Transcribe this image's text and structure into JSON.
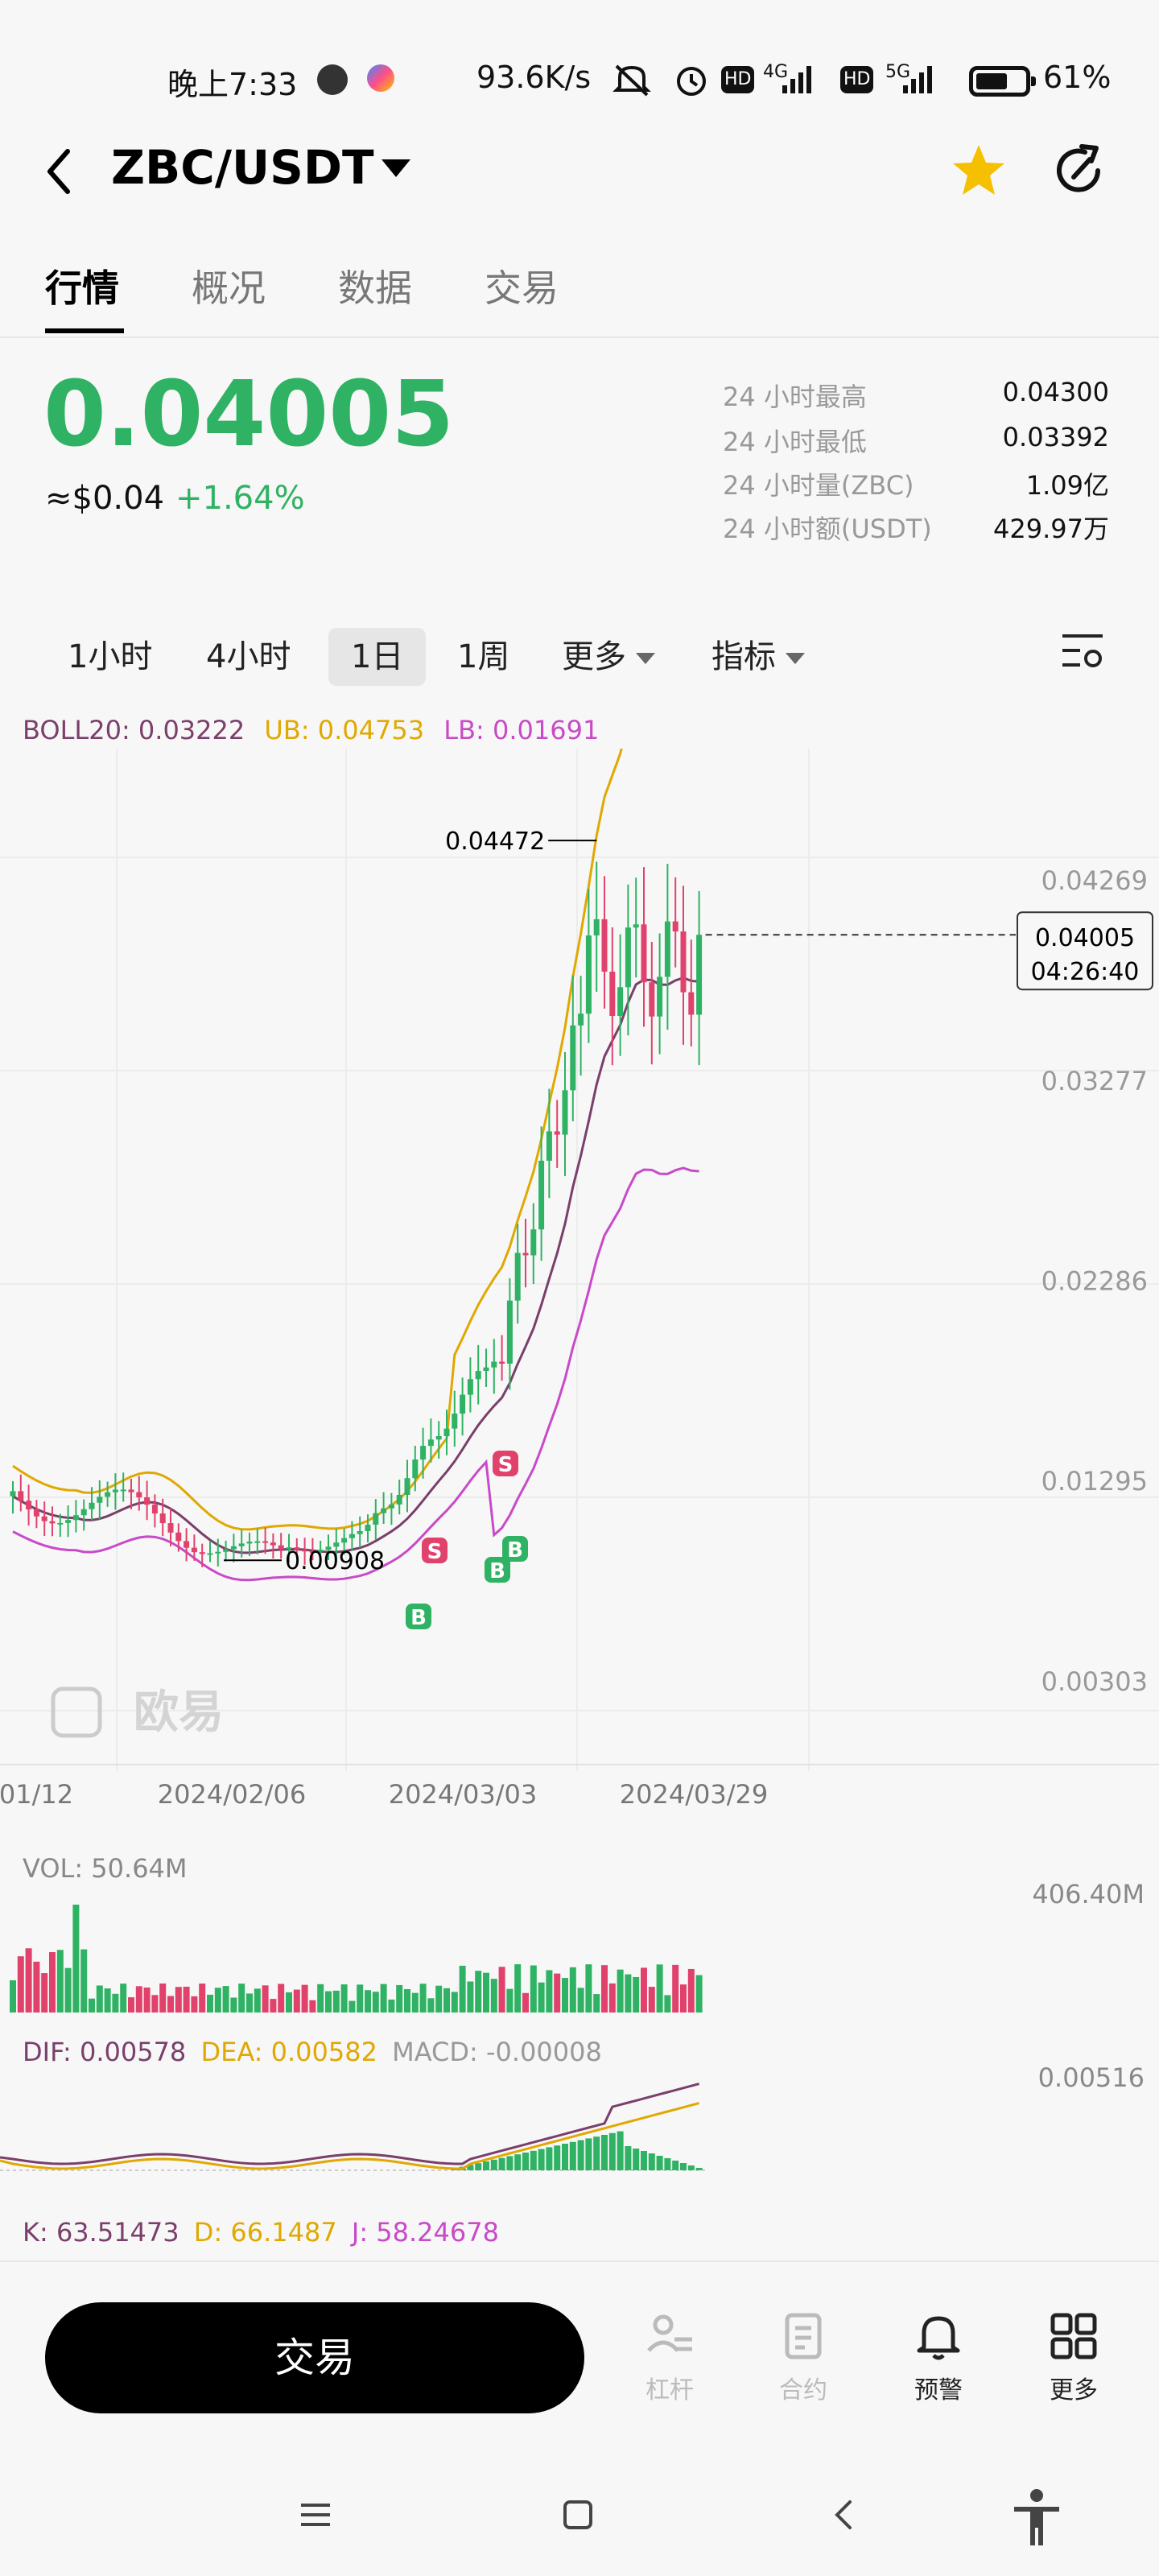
{
  "status_bar": {
    "time": "晚上7:33",
    "net_rate": "93.6K/s",
    "hd1": "HD",
    "net1": "4G",
    "hd2": "HD",
    "net2": "5G",
    "battery": "61%"
  },
  "header": {
    "pair": "ZBC/USDT",
    "icons": [
      "back-arrow-icon",
      "caret-down-icon",
      "star-icon",
      "share-icon"
    ],
    "favorite_color": "#f5c000"
  },
  "tabs": [
    {
      "label": "行情",
      "active": true
    },
    {
      "label": "概况",
      "active": false
    },
    {
      "label": "数据",
      "active": false
    },
    {
      "label": "交易",
      "active": false
    }
  ],
  "price": {
    "last": "0.04005",
    "fiat": "≈$0.04",
    "change": "+1.64%",
    "up_color": "#2fb263",
    "down_color": "#e0426c"
  },
  "stats": [
    {
      "label": "24 小时最高",
      "value": "0.04300"
    },
    {
      "label": "24 小时最低",
      "value": "0.03392"
    },
    {
      "label": "24 小时量(ZBC)",
      "value": "1.09亿"
    },
    {
      "label": "24 小时额(USDT)",
      "value": "429.97万"
    }
  ],
  "intervals": [
    {
      "label": "1小时",
      "active": false,
      "dropdown": false
    },
    {
      "label": "4小时",
      "active": false,
      "dropdown": false
    },
    {
      "label": "1日",
      "active": true,
      "dropdown": false
    },
    {
      "label": "1周",
      "active": false,
      "dropdown": false
    },
    {
      "label": "更多",
      "active": false,
      "dropdown": true
    },
    {
      "label": "指标",
      "active": false,
      "dropdown": true
    }
  ],
  "indicators": {
    "boll": {
      "mid": "BOLL20: 0.03222",
      "ub": "UB: 0.04753",
      "lb": "LB: 0.01691"
    },
    "vol": {
      "label": "VOL: 50.64M",
      "axis_max": "406.40M"
    },
    "macd": {
      "dif": "DIF: 0.00578",
      "dea": "DEA: 0.00582",
      "macd": "MACD: -0.00008",
      "axis_max": "0.00516"
    },
    "kdj": {
      "k": "K: 63.51473",
      "d": "D: 66.1487",
      "j": "J: 58.24678"
    }
  },
  "chart_data": {
    "type": "candlestick",
    "y_ticks": [
      "0.04269",
      "0.03277",
      "0.02286",
      "0.01295",
      "0.00303"
    ],
    "y_tick_values": [
      0.04269,
      0.03277,
      0.02286,
      0.01295,
      0.00303
    ],
    "x_ticks": [
      "01/12",
      "2024/02/06",
      "2024/03/03",
      "2024/03/29"
    ],
    "high_label": "0.04472",
    "high_value": 0.04472,
    "low_label": "0.00908",
    "low_value": 0.00908,
    "current_price": "0.04005",
    "current_value": 0.04005,
    "countdown": "04:26:40",
    "watermark": "欧易",
    "signals": [
      "B",
      "B",
      "B",
      "S",
      "S"
    ]
  },
  "bottom_bar": {
    "trade_label": "交易",
    "items": [
      {
        "label": "杠杆",
        "icon": "leverage-icon",
        "enabled": false
      },
      {
        "label": "合约",
        "icon": "contract-icon",
        "enabled": false
      },
      {
        "label": "预警",
        "icon": "bell-icon",
        "enabled": true
      },
      {
        "label": "更多",
        "icon": "grid-icon",
        "enabled": true
      }
    ]
  },
  "system_nav": [
    "menu-icon",
    "home-icon",
    "back-icon",
    "accessibility-icon"
  ]
}
